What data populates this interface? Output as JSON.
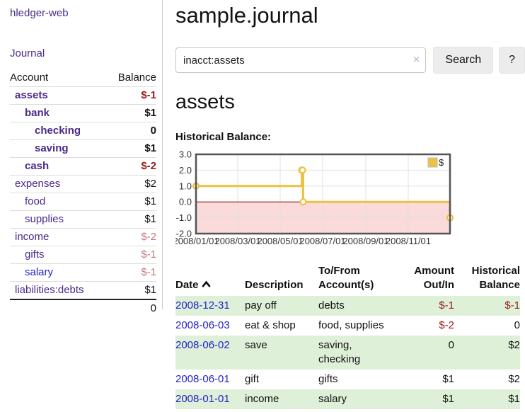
{
  "app": {
    "title": "hledger-web",
    "nav_journal": "Journal"
  },
  "colors": {
    "link_purple": "#4a2a8b",
    "link_blue": "#2222cc",
    "negative_strong": "#961c1c",
    "negative_soft": "#c4767c",
    "row_green": "#dff0d8",
    "series_yellow": "#edc240",
    "chart_negative_fill": "#fadada",
    "chart_zero_line": "#8b0000"
  },
  "sidebar": {
    "header": {
      "account": "Account",
      "balance": "Balance"
    },
    "accounts": [
      {
        "name": "assets",
        "depth": 1,
        "bold": true,
        "balance": "$-1",
        "bstyle": "neg",
        "name_color": "purple"
      },
      {
        "name": "bank",
        "depth": 2,
        "bold": true,
        "balance": "$1",
        "bstyle": "",
        "name_color": "purple"
      },
      {
        "name": "checking",
        "depth": 3,
        "bold": true,
        "balance": "0",
        "bstyle": "",
        "name_color": "purple"
      },
      {
        "name": "saving",
        "depth": 3,
        "bold": true,
        "balance": "$1",
        "bstyle": "",
        "name_color": "purple"
      },
      {
        "name": "cash",
        "depth": 2,
        "bold": true,
        "balance": "$-2",
        "bstyle": "neg",
        "name_color": "purple"
      },
      {
        "name": "expenses",
        "depth": 1,
        "bold": false,
        "balance": "$2",
        "bstyle": "",
        "name_color": "purple"
      },
      {
        "name": "food",
        "depth": 2,
        "bold": false,
        "balance": "$1",
        "bstyle": "",
        "name_color": "purple"
      },
      {
        "name": "supplies",
        "depth": 2,
        "bold": false,
        "balance": "$1",
        "bstyle": "",
        "name_color": "purple"
      },
      {
        "name": "income",
        "depth": 1,
        "bold": false,
        "balance": "$-2",
        "bstyle": "negsoft",
        "name_color": "purple"
      },
      {
        "name": "gifts",
        "depth": 2,
        "bold": false,
        "balance": "$-1",
        "bstyle": "negsoft",
        "name_color": "purple"
      },
      {
        "name": "salary",
        "depth": 2,
        "bold": false,
        "balance": "$-1",
        "bstyle": "negsoft",
        "name_color": "blue"
      },
      {
        "name": "liabilities:debts",
        "depth": 1,
        "bold": false,
        "balance": "$1",
        "bstyle": "",
        "name_color": "purple"
      }
    ],
    "total": "0"
  },
  "header": {
    "title": "sample.journal"
  },
  "search": {
    "value": "inacct:assets",
    "clear_icon": "×",
    "button_label": "Search",
    "help_label": "?"
  },
  "main": {
    "heading": "assets",
    "chart_label": "Historical Balance:"
  },
  "chart_data": {
    "type": "line",
    "title": "Historical Balance",
    "step": true,
    "series": [
      {
        "name": "$",
        "color": "#edc240",
        "points": [
          [
            "2008-01-01",
            1
          ],
          [
            "2008-06-01",
            2
          ],
          [
            "2008-06-02",
            2
          ],
          [
            "2008-06-03",
            0
          ],
          [
            "2008-12-31",
            -1
          ]
        ]
      }
    ],
    "x_range": [
      "2008-01-01",
      "2008-12-31"
    ],
    "x_ticks": [
      "2008/01/01",
      "2008/03/01",
      "2008/05/01",
      "2008/07/01",
      "2008/09/01",
      "2008/11/01"
    ],
    "y_range": [
      -2,
      3
    ],
    "y_ticks": [
      3.0,
      2.0,
      1.0,
      0.0,
      -1.0,
      -2.0
    ],
    "grid": true,
    "legend": "$",
    "legend_position": "top-right",
    "negative_region_color": "#fadada",
    "zero_line_color": "#8b0000",
    "grid_color": "#e0e0e0",
    "border_color": "#545454"
  },
  "register": {
    "columns": [
      "Date",
      "Description",
      "To/From Account(s)",
      "Amount Out/In",
      "Historical Balance"
    ],
    "sort_icon": "chevron-up",
    "rows": [
      {
        "date": "2008-12-31",
        "description": "pay off",
        "accounts": "debts",
        "amount": "$-1",
        "balance": "$-1"
      },
      {
        "date": "2008-06-03",
        "description": "eat & shop",
        "accounts": "food, supplies",
        "amount": "$-2",
        "balance": "0"
      },
      {
        "date": "2008-06-02",
        "description": "save",
        "accounts": "saving, checking",
        "amount": "0",
        "balance": "$2"
      },
      {
        "date": "2008-06-01",
        "description": "gift",
        "accounts": "gifts",
        "amount": "$1",
        "balance": "$2"
      },
      {
        "date": "2008-01-01",
        "description": "income",
        "accounts": "salary",
        "amount": "$1",
        "balance": "$1"
      }
    ]
  }
}
